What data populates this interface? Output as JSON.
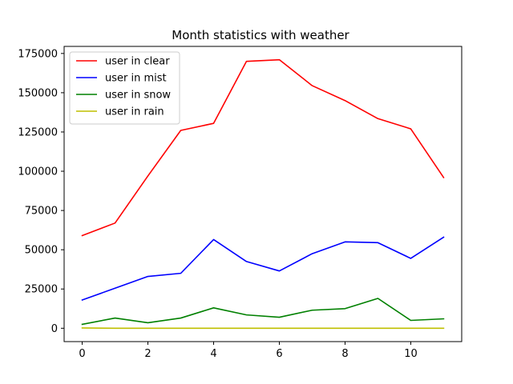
{
  "chart_data": {
    "type": "line",
    "title": "Month statistics with weather",
    "xlabel": "",
    "ylabel": "",
    "x": [
      0,
      1,
      2,
      3,
      4,
      5,
      6,
      7,
      8,
      9,
      10,
      11
    ],
    "xlim": [
      -0.55,
      11.55
    ],
    "ylim": [
      -8500,
      179500
    ],
    "xticks": [
      0,
      2,
      4,
      6,
      8,
      10
    ],
    "xtick_labels": [
      "0",
      "2",
      "4",
      "6",
      "8",
      "10"
    ],
    "yticks": [
      0,
      25000,
      50000,
      75000,
      100000,
      125000,
      150000,
      175000
    ],
    "ytick_labels": [
      "0",
      "25000",
      "50000",
      "75000",
      "100000",
      "125000",
      "150000",
      "175000"
    ],
    "grid": false,
    "legend_position": "top-left",
    "series": [
      {
        "name": "user in clear",
        "color": "#ff0000",
        "values": [
          59000,
          67000,
          97000,
          126000,
          130500,
          170000,
          171000,
          154500,
          145000,
          133500,
          127000,
          96000
        ]
      },
      {
        "name": "user in mist",
        "color": "#0000ff",
        "values": [
          18000,
          25500,
          33000,
          35000,
          56500,
          42500,
          36500,
          47500,
          55000,
          54500,
          44500,
          58000
        ]
      },
      {
        "name": "user in snow",
        "color": "#008000",
        "values": [
          2500,
          6500,
          3500,
          6500,
          13000,
          8500,
          7000,
          11500,
          12500,
          19000,
          5000,
          6000
        ]
      },
      {
        "name": "user in rain",
        "color": "#bfbf00",
        "values": [
          200,
          0,
          0,
          0,
          0,
          0,
          0,
          0,
          0,
          0,
          0,
          0
        ]
      }
    ]
  }
}
